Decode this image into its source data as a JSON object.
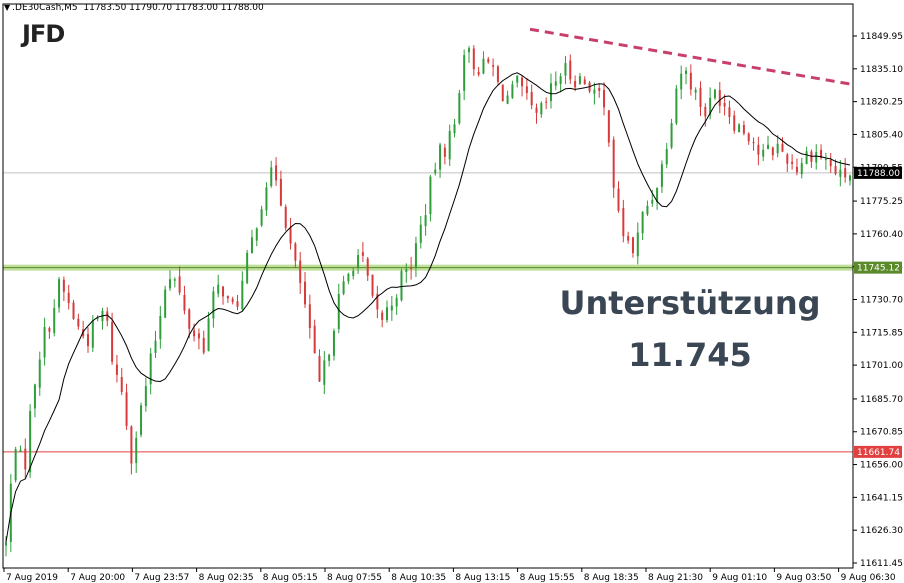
{
  "header": {
    "symbol": ".DE30Cash,M5",
    "ohlc": "11783.50 11790.70 11783.00 11788.00"
  },
  "logo": {
    "text": "JFD"
  },
  "annotation": {
    "line1": "Unterstützung",
    "line2": "11.745"
  },
  "colors": {
    "bull": "#2e9e3a",
    "bear": "#d63a3a",
    "ma": "#000000",
    "support_band": "#b5d98a",
    "support_line": "#5a8a2a",
    "low_line": "#e04040",
    "trendline": "#c8406a",
    "price_tag": "#000000"
  },
  "chart_data": {
    "type": "candlestick",
    "title": "",
    "xlabel": "",
    "ylabel": "",
    "ylim": [
      11611.45,
      11860
    ],
    "y_ticks": [
      "11849.95",
      "11835.10",
      "11820.25",
      "11805.40",
      "11790.55",
      "11775.25",
      "11760.40",
      "11745.55",
      "11730.70",
      "11715.85",
      "11701.00",
      "11685.70",
      "11670.85",
      "11656.00",
      "11641.15",
      "11626.30",
      "11611.45"
    ],
    "x_ticks": [
      "7 Aug 2019",
      "7 Aug 20:00",
      "7 Aug 23:57",
      "8 Aug 02:35",
      "8 Aug 05:15",
      "8 Aug 07:55",
      "8 Aug 10:35",
      "8 Aug 13:15",
      "8 Aug 15:55",
      "8 Aug 18:35",
      "8 Aug 21:30",
      "9 Aug 01:10",
      "9 Aug 03:50",
      "9 Aug 06:30"
    ],
    "current_price": "11788.00",
    "levels": [
      {
        "name": "support",
        "value": "11745.12"
      },
      {
        "name": "low",
        "value": "11661.74"
      }
    ],
    "trendline": {
      "start": 11853,
      "end": 11828
    },
    "anchors": [
      11620,
      11668,
      11652,
      11690,
      11712,
      11722,
      11738,
      11728,
      11718,
      11712,
      11720,
      11726,
      11700,
      11688,
      11660,
      11680,
      11700,
      11720,
      11745,
      11738,
      11722,
      11715,
      11710,
      11730,
      11738,
      11725,
      11732,
      11750,
      11768,
      11784,
      11788,
      11770,
      11748,
      11735,
      11710,
      11690,
      11710,
      11730,
      11740,
      11752,
      11745,
      11725,
      11722,
      11730,
      11740,
      11745,
      11760,
      11777,
      11795,
      11800,
      11810,
      11845,
      11838,
      11835,
      11838,
      11825,
      11822,
      11828,
      11820,
      11812,
      11818,
      11828,
      11835,
      11832,
      11830,
      11828,
      11822,
      11812,
      11770,
      11758,
      11752,
      11770,
      11778,
      11790,
      11812,
      11835,
      11832,
      11822,
      11815,
      11825,
      11820,
      11812,
      11808,
      11805,
      11795,
      11798,
      11800,
      11795,
      11790,
      11796,
      11798,
      11795,
      11790,
      11786,
      11788
    ]
  }
}
